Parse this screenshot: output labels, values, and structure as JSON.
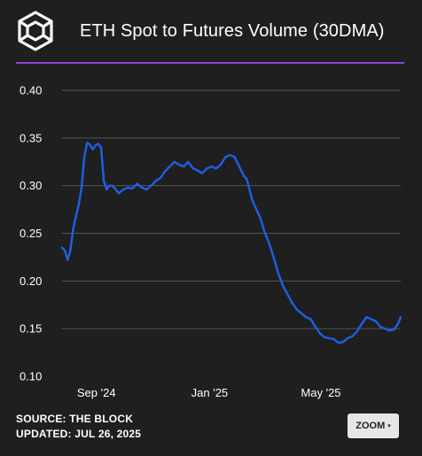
{
  "header": {
    "title": "ETH Spot to Futures Volume (30DMA)"
  },
  "colors": {
    "background": "#1f1f1f",
    "accent": "#8e3fe0",
    "line": "#1f5fe8",
    "grid": "#555555",
    "text": "#ffffff",
    "button_bg": "#e6e6e6"
  },
  "icons": {
    "logo": "the-block-cube-logo-icon"
  },
  "footer": {
    "source": "SOURCE: THE BLOCK",
    "updated": "UPDATED: JUL 26, 2025",
    "zoom_label": "ZOOM",
    "zoom_caret": "▾"
  },
  "chart_data": {
    "type": "line",
    "title": "ETH Spot to Futures Volume (30DMA)",
    "xlabel": "",
    "ylabel": "",
    "ylim": [
      0.1,
      0.4
    ],
    "yticks": [
      0.1,
      0.15,
      0.2,
      0.25,
      0.3,
      0.35,
      0.4
    ],
    "ytick_labels": [
      "0.10",
      "0.15",
      "0.20",
      "0.25",
      "0.30",
      "0.35",
      "0.40"
    ],
    "xlim": [
      "2024-07-26",
      "2025-07-26"
    ],
    "xticks": [
      "2024-09-01",
      "2025-01-01",
      "2025-05-01"
    ],
    "xtick_labels": [
      "Sep '24",
      "Jan '25",
      "May '25"
    ],
    "grid": true,
    "legend": "none",
    "series": [
      {
        "x": [
          "2024-07-26",
          "2024-07-29",
          "2024-08-01",
          "2024-08-04",
          "2024-08-07",
          "2024-08-10",
          "2024-08-13",
          "2024-08-16",
          "2024-08-19",
          "2024-08-22",
          "2024-08-25",
          "2024-08-28",
          "2024-08-31",
          "2024-09-03",
          "2024-09-06",
          "2024-09-09",
          "2024-09-12",
          "2024-09-15",
          "2024-09-18",
          "2024-09-21",
          "2024-09-25",
          "2024-09-30",
          "2024-10-05",
          "2024-10-10",
          "2024-10-15",
          "2024-10-20",
          "2024-10-25",
          "2024-10-30",
          "2024-11-04",
          "2024-11-09",
          "2024-11-14",
          "2024-11-19",
          "2024-11-24",
          "2024-11-29",
          "2024-12-04",
          "2024-12-09",
          "2024-12-14",
          "2024-12-19",
          "2024-12-24",
          "2024-12-29",
          "2025-01-03",
          "2025-01-08",
          "2025-01-13",
          "2025-01-18",
          "2025-01-23",
          "2025-01-28",
          "2025-02-02",
          "2025-02-07",
          "2025-02-10",
          "2025-02-13",
          "2025-02-16",
          "2025-02-19",
          "2025-02-22",
          "2025-02-25",
          "2025-03-01",
          "2025-03-06",
          "2025-03-11",
          "2025-03-16",
          "2025-03-21",
          "2025-03-26",
          "2025-03-31",
          "2025-04-05",
          "2025-04-10",
          "2025-04-15",
          "2025-04-20",
          "2025-04-25",
          "2025-04-30",
          "2025-05-05",
          "2025-05-10",
          "2025-05-15",
          "2025-05-20",
          "2025-05-25",
          "2025-05-30",
          "2025-06-04",
          "2025-06-09",
          "2025-06-14",
          "2025-06-19",
          "2025-06-24",
          "2025-06-29",
          "2025-07-04",
          "2025-07-09",
          "2025-07-14",
          "2025-07-19",
          "2025-07-23",
          "2025-07-26"
        ],
        "values": [
          0.235,
          0.232,
          0.222,
          0.232,
          0.255,
          0.268,
          0.28,
          0.298,
          0.33,
          0.345,
          0.343,
          0.338,
          0.342,
          0.344,
          0.34,
          0.305,
          0.296,
          0.3,
          0.3,
          0.297,
          0.292,
          0.296,
          0.298,
          0.297,
          0.302,
          0.298,
          0.296,
          0.3,
          0.305,
          0.308,
          0.315,
          0.32,
          0.325,
          0.322,
          0.32,
          0.325,
          0.318,
          0.316,
          0.313,
          0.318,
          0.32,
          0.318,
          0.322,
          0.33,
          0.332,
          0.33,
          0.32,
          0.31,
          0.307,
          0.296,
          0.285,
          0.278,
          0.272,
          0.265,
          0.252,
          0.24,
          0.225,
          0.208,
          0.195,
          0.186,
          0.177,
          0.17,
          0.166,
          0.162,
          0.16,
          0.152,
          0.145,
          0.141,
          0.14,
          0.139,
          0.135,
          0.136,
          0.14,
          0.142,
          0.147,
          0.155,
          0.162,
          0.16,
          0.158,
          0.152,
          0.15,
          0.148,
          0.149,
          0.155,
          0.162
        ]
      }
    ]
  }
}
